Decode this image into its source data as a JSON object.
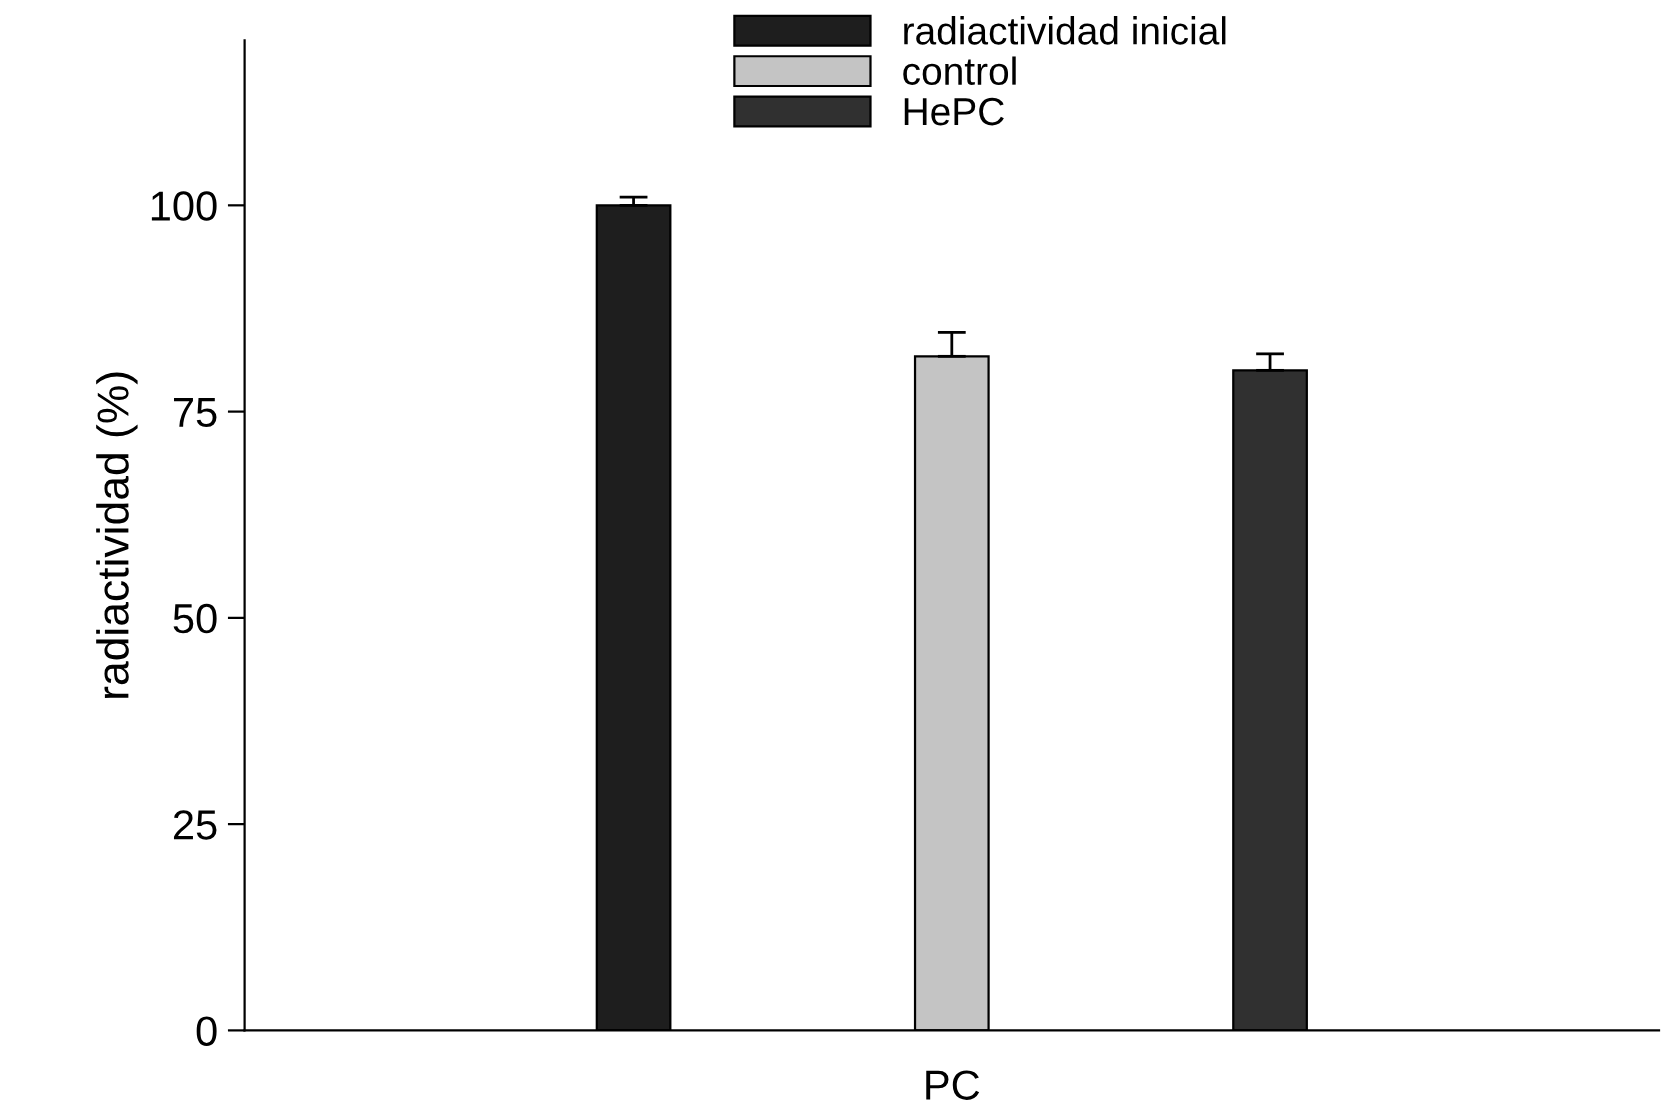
{
  "chart_data": {
    "type": "bar",
    "ylabel": "radiactividad (%)",
    "categories": [
      "PC"
    ],
    "series": [
      {
        "name": "radiactividad inicial",
        "color": "#1e1e1e",
        "values": [
          100
        ],
        "errors": [
          [
            100,
            101
          ]
        ]
      },
      {
        "name": "control",
        "color": "#c4c4c4",
        "values": [
          81.7
        ],
        "errors": [
          [
            81.7,
            84.6
          ]
        ]
      },
      {
        "name": "HePC",
        "color": "#303030",
        "values": [
          80
        ],
        "errors": [
          [
            80,
            82
          ]
        ]
      }
    ],
    "ylim": [
      0,
      120
    ],
    "yticks": [
      0,
      25,
      50,
      75,
      100
    ],
    "legend": "top right",
    "grid": false
  }
}
